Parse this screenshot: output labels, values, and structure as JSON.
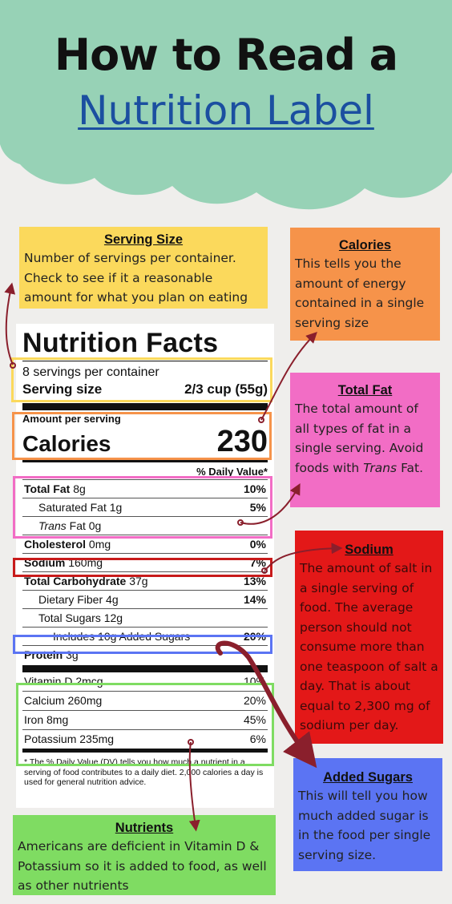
{
  "header": {
    "title": "How to Read a",
    "subtitle": "Nutrition Label"
  },
  "colors": {
    "cloud": "#97d2b6",
    "background": "#efeeec",
    "title": "#111111",
    "subtitle": "#1b4fa0",
    "serving_box": "#fbd95c",
    "calories_box": "#f6934a",
    "total_fat_box": "#f26dc5",
    "sodium_box": "#e31818",
    "added_sugars_box": "#5b74f3",
    "nutrients_box": "#7fdc62",
    "arrow": "#8a1f2c"
  },
  "label": {
    "title": "Nutrition Facts",
    "servings": "8 servings per container",
    "serving_size_label": "Serving size",
    "serving_size_value": "2/3 cup (55g)",
    "amount_per_serving": "Amount per serving",
    "calories_label": "Calories",
    "calories_value": "230",
    "dv_header": "% Daily Value*",
    "rows": {
      "total_fat": {
        "name": "Total Fat",
        "amount": "8g",
        "dv": "10%"
      },
      "saturated_fat": {
        "name": "Saturated Fat",
        "amount": "1g",
        "dv": "5%"
      },
      "trans_fat": {
        "name": "Trans",
        "name2": "Fat",
        "amount": "0g",
        "dv": ""
      },
      "cholesterol": {
        "name": "Cholesterol",
        "amount": "0mg",
        "dv": "0%"
      },
      "sodium": {
        "name": "Sodium",
        "amount": "160mg",
        "dv": "7%"
      },
      "total_carb": {
        "name": "Total Carbohydrate",
        "amount": "37g",
        "dv": "13%"
      },
      "fiber": {
        "name": "Dietary Fiber",
        "amount": "4g",
        "dv": "14%"
      },
      "sugars": {
        "name": "Total Sugars",
        "amount": "12g",
        "dv": ""
      },
      "added_sugars": {
        "name": "Includes 10g Added Sugars",
        "amount": "",
        "dv": "20%"
      },
      "protein": {
        "name": "Protein",
        "amount": "3g",
        "dv": ""
      }
    },
    "vitamins": [
      {
        "name": "Vitamin D 2mcg",
        "dv": "10%"
      },
      {
        "name": "Calcium 260mg",
        "dv": "20%"
      },
      {
        "name": "Iron 8mg",
        "dv": "45%"
      },
      {
        "name": "Potassium 235mg",
        "dv": "6%"
      }
    ],
    "footnote_star": "*",
    "footnote": "The % Daily Value (DV) tells you how much a nutrient in a serving of food contributes to a daily diet. 2,000 calories a day is used for general nutrition advice."
  },
  "callouts": {
    "serving_size": {
      "title": "Serving Size",
      "text": "Number of servings per container. Check to see if it a reasonable amount for what you plan on eating"
    },
    "calories": {
      "title": "Calories",
      "text": "This tells you the amount of energy contained in a single serving size"
    },
    "total_fat": {
      "title": "Total Fat",
      "text": "The total amount of all types of fat in a single serving. Avoid foods with",
      "text_italic": "Trans",
      "text_end": " Fat."
    },
    "sodium": {
      "title": "Sodium",
      "text": "The amount of salt in a single serving of food. The average person should not consume more than one teaspoon of salt a day. That is about equal to 2,300 mg of sodium per day."
    },
    "added_sugars": {
      "title": "Added Sugars",
      "text": "This will tell you how much added sugar is in the food per single serving size."
    },
    "nutrients": {
      "title": "Nutrients",
      "text": "Americans are deficient in Vitamin D & Potassium so it is added to food, as well as other nutrients"
    }
  }
}
